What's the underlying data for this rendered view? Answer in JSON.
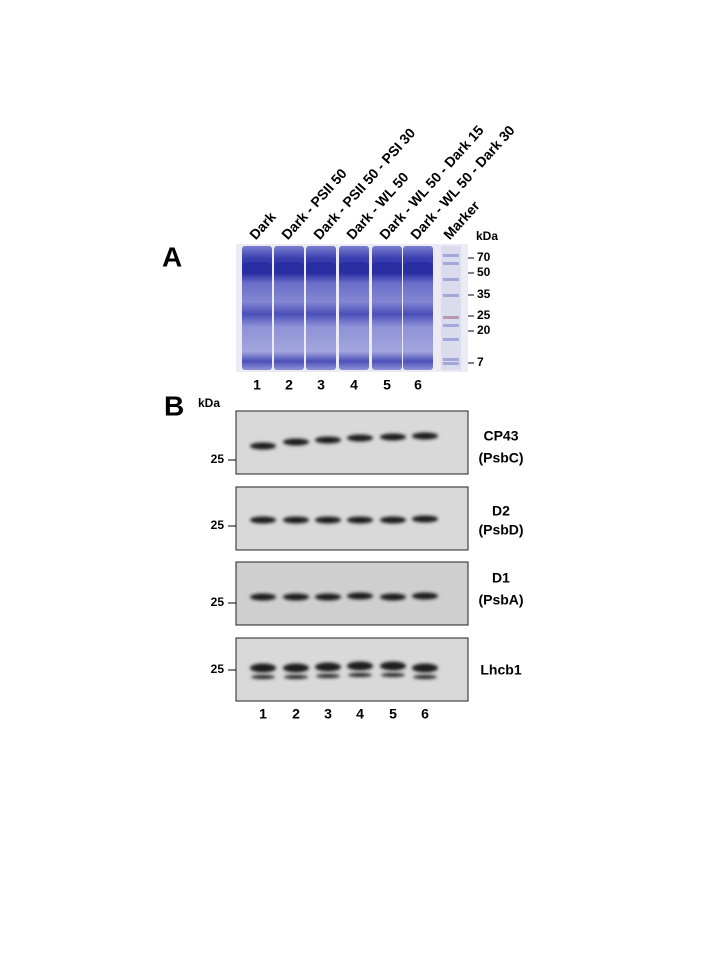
{
  "panel_a": {
    "label": "A",
    "lanes": [
      "Dark",
      "Dark - PSII 50",
      "Dark - PSII 50 - PSI 30",
      "Dark - WL 50",
      "Dark - WL 50 - Dark 15",
      "Dark - WL 50 - Dark 30",
      "Marker"
    ],
    "unit": "kDa",
    "markers": [
      70,
      50,
      35,
      25,
      20,
      7
    ],
    "lane_numbers": [
      1,
      2,
      3,
      4,
      5,
      6
    ]
  },
  "panel_b": {
    "label": "B",
    "unit": "kDa",
    "blots": [
      {
        "marker": 25,
        "name": [
          "CP43",
          "(PsbC)"
        ]
      },
      {
        "marker": 25,
        "name": [
          "D2",
          "(PsbD)"
        ]
      },
      {
        "marker": 25,
        "name": [
          "D1",
          "(PsbA)"
        ]
      },
      {
        "marker": 25,
        "name": [
          "Lhcb1"
        ]
      }
    ],
    "lane_numbers": [
      1,
      2,
      3,
      4,
      5,
      6
    ]
  }
}
